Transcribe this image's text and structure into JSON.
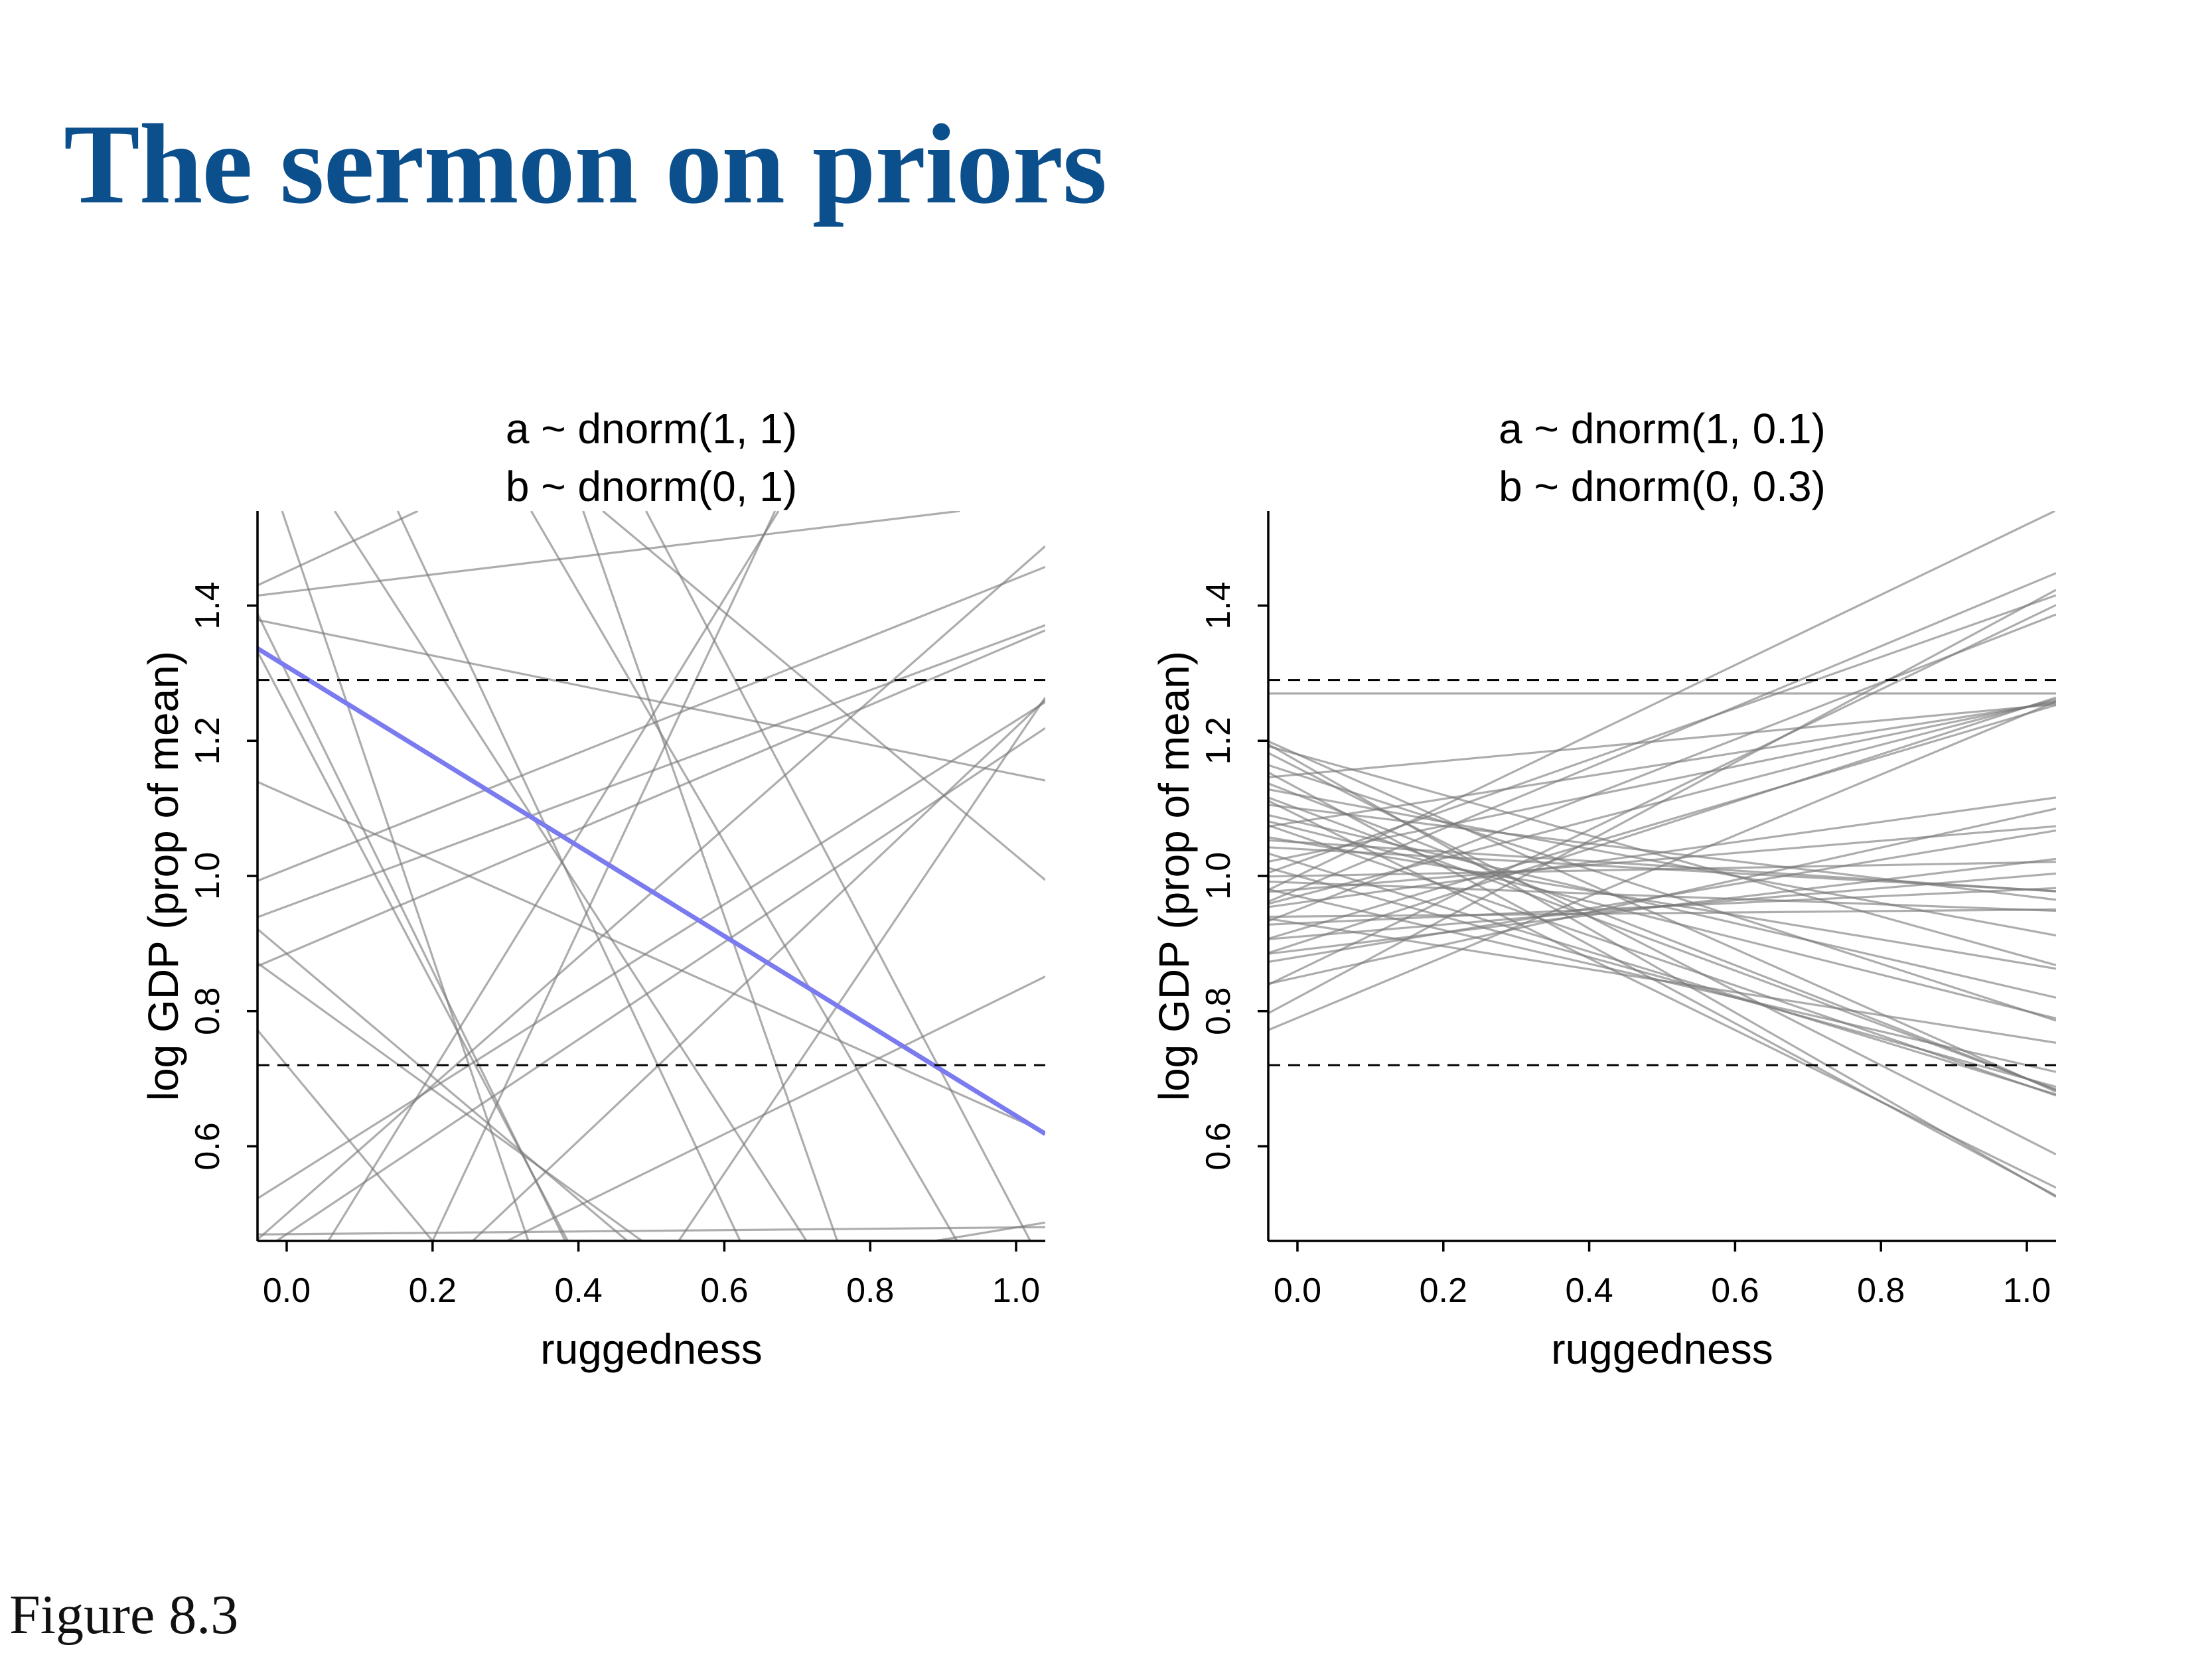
{
  "slide": {
    "title": "The sermon on priors",
    "figure_label": "Figure 8.3"
  },
  "colors": {
    "title": "#0b4f8c",
    "prior_lines": "#777777",
    "highlight_line": "#7b7bf0",
    "reference_lines": "#000000"
  },
  "chart_data": [
    {
      "type": "line",
      "title": [
        "a ~ dnorm(1, 1)",
        "b ~ dnorm(0, 1)"
      ],
      "xlabel": "ruggedness",
      "ylabel": "log GDP (prop of mean)",
      "xlim": [
        -0.04,
        1.04
      ],
      "ylim": [
        0.46,
        1.54
      ],
      "xticks": [
        0.0,
        0.2,
        0.4,
        0.6,
        0.8,
        1.0
      ],
      "xtick_labels": [
        "0.0",
        "0.2",
        "0.4",
        "0.6",
        "0.8",
        "1.0"
      ],
      "yticks": [
        0.6,
        0.8,
        1.0,
        1.2,
        1.4
      ],
      "ytick_labels": [
        "0.6",
        "0.8",
        "1.0",
        "1.2",
        "1.4"
      ],
      "grid": false,
      "reference_lines": [
        0.72,
        1.29
      ],
      "highlight": {
        "intercept": 1.31,
        "slope": -0.665
      },
      "lines": [
        {
          "intercept": 1.37,
          "slope": -0.22
        },
        {
          "intercept": 1.01,
          "slope": 0.43
        },
        {
          "intercept": 0.955,
          "slope": 0.4
        },
        {
          "intercept": 0.885,
          "slope": 0.46
        },
        {
          "intercept": 0.5,
          "slope": 0.95
        },
        {
          "intercept": 0.47,
          "slope": 0.72
        },
        {
          "intercept": 0.55,
          "slope": 0.68
        },
        {
          "intercept": 0.885,
          "slope": -0.91
        },
        {
          "intercept": 1.12,
          "slope": -0.48
        },
        {
          "intercept": 1.3,
          "slope": -2.2
        },
        {
          "intercept": 0.84,
          "slope": -0.78
        },
        {
          "intercept": 0.72,
          "slope": -1.3
        },
        {
          "intercept": 1.25,
          "slope": -2.05
        },
        {
          "intercept": 1.45,
          "slope": 0.5
        },
        {
          "intercept": 0.36,
          "slope": 1.75
        },
        {
          "intercept": 0.0,
          "slope": 2.3
        },
        {
          "intercept": 1.89,
          "slope": -2.3
        },
        {
          "intercept": 2.16,
          "slope": -1.85
        },
        {
          "intercept": 2.55,
          "slope": -2.05
        },
        {
          "intercept": 1.93,
          "slope": -0.9
        },
        {
          "intercept": 1.65,
          "slope": -1.67
        },
        {
          "intercept": 0.2,
          "slope": 1.02
        },
        {
          "intercept": 0.3,
          "slope": 0.53
        },
        {
          "intercept": 0.47,
          "slope": 0.01
        },
        {
          "intercept": -0.4,
          "slope": 1.6
        },
        {
          "intercept": 1.52,
          "slope": -3.2
        },
        {
          "intercept": 0.3,
          "slope": 0.18
        },
        {
          "intercept": 1.42,
          "slope": 0.13
        },
        {
          "intercept": 2.8,
          "slope": -3.1
        }
      ]
    },
    {
      "type": "line",
      "title": [
        "a ~ dnorm(1, 0.1)",
        "b ~ dnorm(0, 0.3)"
      ],
      "xlabel": "ruggedness",
      "ylabel": "log GDP (prop of mean)",
      "xlim": [
        -0.04,
        1.04
      ],
      "ylim": [
        0.46,
        1.54
      ],
      "xticks": [
        0.0,
        0.2,
        0.4,
        0.6,
        0.8,
        1.0
      ],
      "xtick_labels": [
        "0.0",
        "0.2",
        "0.4",
        "0.6",
        "0.8",
        "1.0"
      ],
      "yticks": [
        0.6,
        0.8,
        1.0,
        1.2,
        1.4
      ],
      "ytick_labels": [
        "0.6",
        "0.8",
        "1.0",
        "1.2",
        "1.4"
      ],
      "grid": false,
      "reference_lines": [
        0.72,
        1.29
      ],
      "lines": [
        {
          "intercept": 1.0,
          "slope": 0.52
        },
        {
          "intercept": 0.98,
          "slope": 0.45
        },
        {
          "intercept": 1.02,
          "slope": 0.38
        },
        {
          "intercept": 0.95,
          "slope": 0.42
        },
        {
          "intercept": 0.82,
          "slope": 0.58
        },
        {
          "intercept": 0.86,
          "slope": 0.52
        },
        {
          "intercept": 0.92,
          "slope": 0.32
        },
        {
          "intercept": 1.03,
          "slope": 0.22
        },
        {
          "intercept": 0.9,
          "slope": 0.35
        },
        {
          "intercept": 1.15,
          "slope": 0.1
        },
        {
          "intercept": 1.08,
          "slope": 0.17
        },
        {
          "intercept": 1.27,
          "slope": 0.0
        },
        {
          "intercept": 0.96,
          "slope": 0.15
        },
        {
          "intercept": 0.98,
          "slope": 0.09
        },
        {
          "intercept": 0.88,
          "slope": 0.18
        },
        {
          "intercept": 0.85,
          "slope": 0.24
        },
        {
          "intercept": 0.93,
          "slope": 0.05
        },
        {
          "intercept": 1.0,
          "slope": 0.02
        },
        {
          "intercept": 0.94,
          "slope": 0.01
        },
        {
          "intercept": 1.05,
          "slope": -0.07
        },
        {
          "intercept": 1.1,
          "slope": -0.13
        },
        {
          "intercept": 1.12,
          "slope": -0.2
        },
        {
          "intercept": 1.18,
          "slope": -0.3
        },
        {
          "intercept": 1.05,
          "slope": -0.18
        },
        {
          "intercept": 1.08,
          "slope": -0.25
        },
        {
          "intercept": 1.15,
          "slope": -0.35
        },
        {
          "intercept": 1.1,
          "slope": -0.4
        },
        {
          "intercept": 1.12,
          "slope": -0.42
        },
        {
          "intercept": 1.06,
          "slope": -0.37
        },
        {
          "intercept": 1.18,
          "slope": -0.48
        },
        {
          "intercept": 1.02,
          "slope": -0.33
        },
        {
          "intercept": 1.16,
          "slope": -0.55
        },
        {
          "intercept": 1.13,
          "slope": -0.58
        },
        {
          "intercept": 1.09,
          "slope": -0.53
        },
        {
          "intercept": 1.17,
          "slope": -0.62
        },
        {
          "intercept": 1.0,
          "slope": -0.3
        },
        {
          "intercept": 0.97,
          "slope": -0.25
        },
        {
          "intercept": 0.93,
          "slope": -0.17
        },
        {
          "intercept": 0.99,
          "slope": -0.04
        },
        {
          "intercept": 0.91,
          "slope": 0.09
        },
        {
          "intercept": 0.89,
          "slope": 0.13
        },
        {
          "intercept": 1.04,
          "slope": -0.06
        },
        {
          "intercept": 0.79,
          "slope": 0.45
        },
        {
          "intercept": 0.97,
          "slope": 0.28
        },
        {
          "intercept": 1.07,
          "slope": -0.27
        }
      ]
    }
  ]
}
